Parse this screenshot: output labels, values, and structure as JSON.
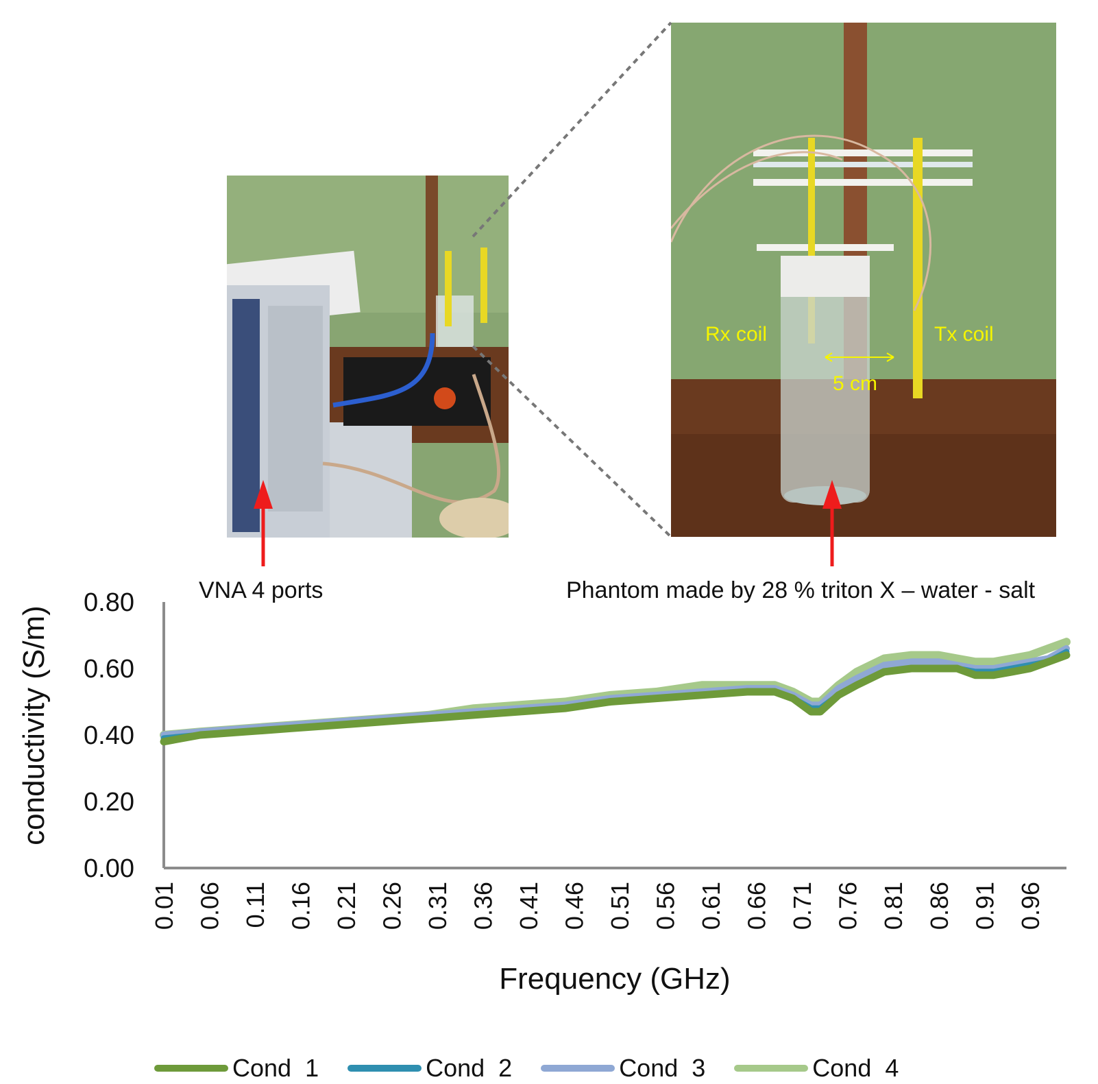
{
  "photos": {
    "left": {
      "caption": "VNA 4 ports"
    },
    "right": {
      "caption": "Phantom made by 28 % triton X – water - salt",
      "rx_label": "Rx coil",
      "tx_label": "Tx coil",
      "distance_label": "5 cm"
    }
  },
  "colors": {
    "arrow": "#ee1c1c",
    "label": "#f5f500",
    "wall": "#7fa06a",
    "table": "#6a3a1f"
  },
  "chart_data": {
    "type": "line",
    "title": "",
    "xlabel": "Frequency (GHz)",
    "ylabel": "conductivity (S/m)",
    "ylim": [
      0,
      0.8
    ],
    "yticks": [
      "0.00",
      "0.20",
      "0.40",
      "0.60",
      "0.80"
    ],
    "xticks": [
      "0.01",
      "0.06",
      "0.11",
      "0.16",
      "0.21",
      "0.26",
      "0.31",
      "0.36",
      "0.41",
      "0.46",
      "0.51",
      "0.56",
      "0.61",
      "0.66",
      "0.71",
      "0.76",
      "0.81",
      "0.86",
      "0.91",
      "0.96"
    ],
    "xlim": [
      0.01,
      1.0
    ],
    "grid": false,
    "legend": "bottom",
    "x": [
      0.01,
      0.05,
      0.1,
      0.15,
      0.2,
      0.25,
      0.3,
      0.35,
      0.4,
      0.45,
      0.5,
      0.55,
      0.6,
      0.65,
      0.68,
      0.7,
      0.72,
      0.73,
      0.75,
      0.77,
      0.8,
      0.83,
      0.86,
      0.88,
      0.9,
      0.92,
      0.94,
      0.96,
      0.98,
      1.0
    ],
    "series": [
      {
        "name": "Cond  1",
        "color": "#6e9a3a",
        "values": [
          0.38,
          0.4,
          0.41,
          0.42,
          0.43,
          0.44,
          0.45,
          0.46,
          0.47,
          0.48,
          0.5,
          0.51,
          0.52,
          0.53,
          0.53,
          0.51,
          0.47,
          0.47,
          0.52,
          0.55,
          0.59,
          0.6,
          0.6,
          0.6,
          0.58,
          0.58,
          0.59,
          0.6,
          0.62,
          0.64
        ]
      },
      {
        "name": "Cond  2",
        "color": "#2f8fb0",
        "values": [
          0.39,
          0.4,
          0.41,
          0.42,
          0.43,
          0.44,
          0.45,
          0.46,
          0.47,
          0.48,
          0.5,
          0.51,
          0.52,
          0.53,
          0.53,
          0.51,
          0.48,
          0.48,
          0.52,
          0.55,
          0.59,
          0.6,
          0.6,
          0.6,
          0.59,
          0.59,
          0.6,
          0.61,
          0.62,
          0.65
        ]
      },
      {
        "name": "Cond  3",
        "color": "#8fa8d4",
        "values": [
          0.4,
          0.41,
          0.42,
          0.43,
          0.44,
          0.45,
          0.46,
          0.47,
          0.48,
          0.49,
          0.51,
          0.52,
          0.53,
          0.54,
          0.54,
          0.52,
          0.49,
          0.49,
          0.54,
          0.57,
          0.61,
          0.62,
          0.62,
          0.61,
          0.6,
          0.6,
          0.61,
          0.62,
          0.63,
          0.66
        ]
      },
      {
        "name": "Cond  4",
        "color": "#a6c98a",
        "values": [
          0.4,
          0.41,
          0.42,
          0.43,
          0.44,
          0.45,
          0.46,
          0.48,
          0.49,
          0.5,
          0.52,
          0.53,
          0.55,
          0.55,
          0.55,
          0.53,
          0.5,
          0.5,
          0.55,
          0.59,
          0.63,
          0.64,
          0.64,
          0.63,
          0.62,
          0.62,
          0.63,
          0.64,
          0.66,
          0.68
        ]
      }
    ]
  }
}
